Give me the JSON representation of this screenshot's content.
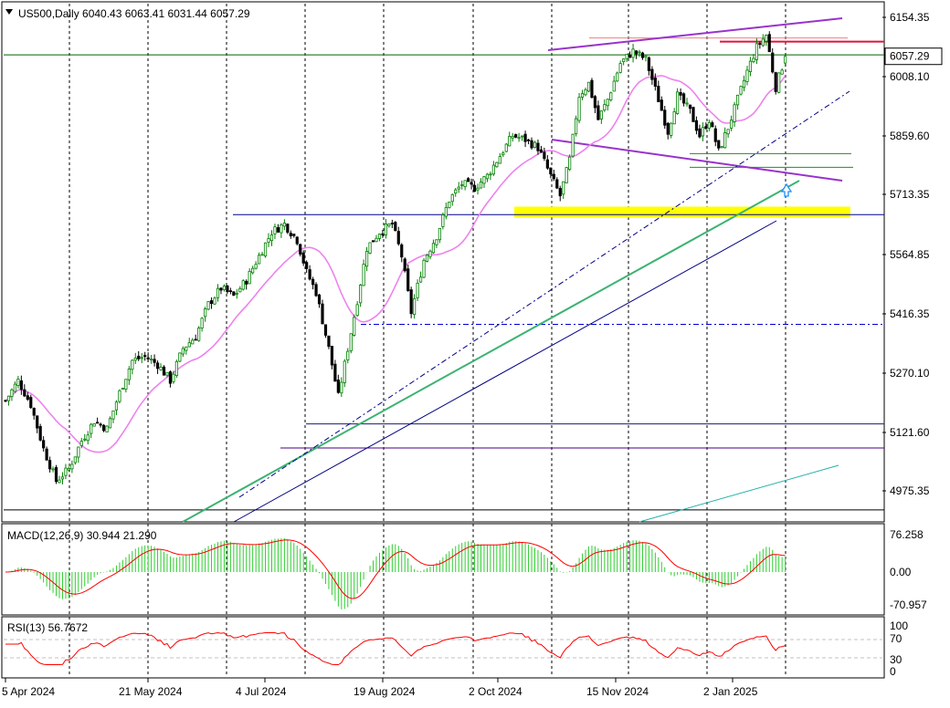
{
  "chart_data": {
    "type": "candlestick",
    "symbol": "US500",
    "timeframe": "Daily",
    "header": "US500,Daily  6040.43 6063.41 6031.44 6057.29",
    "ohlc_last": {
      "open": 6040.43,
      "high": 6063.41,
      "low": 6031.44,
      "close": 6057.29
    },
    "current_price_label": "6057.29",
    "y_ticks": [
      "6154.35",
      "6008.10",
      "5859.60",
      "5713.35",
      "5564.85",
      "5416.35",
      "5270.10",
      "5121.60",
      "4975.35"
    ],
    "y_range": [
      4900,
      6180
    ],
    "x_tick_labels": [
      "5 Apr 2024",
      "21 May 2024",
      "4 Jul 2024",
      "19 Aug 2024",
      "2 Oct 2024",
      "15 Nov 2024",
      "2 Jan 2025"
    ],
    "close_path": [
      [
        0,
        5200
      ],
      [
        4,
        5250
      ],
      [
        8,
        5190
      ],
      [
        12,
        5080
      ],
      [
        16,
        5000
      ],
      [
        20,
        5030
      ],
      [
        24,
        5100
      ],
      [
        28,
        5150
      ],
      [
        32,
        5130
      ],
      [
        36,
        5220
      ],
      [
        40,
        5300
      ],
      [
        44,
        5310
      ],
      [
        48,
        5290
      ],
      [
        52,
        5250
      ],
      [
        56,
        5330
      ],
      [
        60,
        5360
      ],
      [
        64,
        5440
      ],
      [
        68,
        5480
      ],
      [
        72,
        5460
      ],
      [
        76,
        5500
      ],
      [
        80,
        5560
      ],
      [
        84,
        5620
      ],
      [
        88,
        5640
      ],
      [
        92,
        5600
      ],
      [
        95,
        5520
      ],
      [
        98,
        5470
      ],
      [
        102,
        5330
      ],
      [
        105,
        5210
      ],
      [
        108,
        5330
      ],
      [
        111,
        5450
      ],
      [
        114,
        5580
      ],
      [
        118,
        5620
      ],
      [
        122,
        5640
      ],
      [
        125,
        5560
      ],
      [
        128,
        5420
      ],
      [
        132,
        5550
      ],
      [
        136,
        5610
      ],
      [
        140,
        5700
      ],
      [
        144,
        5740
      ],
      [
        148,
        5730
      ],
      [
        152,
        5760
      ],
      [
        156,
        5810
      ],
      [
        160,
        5860
      ],
      [
        164,
        5850
      ],
      [
        168,
        5830
      ],
      [
        172,
        5760
      ],
      [
        175,
        5710
      ],
      [
        178,
        5800
      ],
      [
        181,
        5960
      ],
      [
        184,
        5990
      ],
      [
        187,
        5900
      ],
      [
        190,
        5950
      ],
      [
        194,
        6040
      ],
      [
        198,
        6070
      ],
      [
        202,
        6050
      ],
      [
        206,
        5950
      ],
      [
        209,
        5870
      ],
      [
        212,
        5960
      ],
      [
        216,
        5920
      ],
      [
        219,
        5860
      ],
      [
        222,
        5900
      ],
      [
        225,
        5820
      ],
      [
        228,
        5880
      ],
      [
        231,
        5950
      ],
      [
        234,
        6020
      ],
      [
        237,
        6080
      ],
      [
        240,
        6110
      ],
      [
        243,
        5980
      ],
      [
        246,
        6057
      ]
    ],
    "horizontal_lines": [
      {
        "value": 6094,
        "color": "#dc143c"
      },
      {
        "value": 6061,
        "color": "#006400"
      },
      {
        "value": 5815,
        "color": "#228b22"
      },
      {
        "value": 5781,
        "color": "#228b22"
      },
      {
        "value": 5663,
        "color": "#00008b"
      },
      {
        "value": 5390,
        "color": "#0000cd"
      },
      {
        "value": 5142,
        "color": "#191970"
      },
      {
        "value": 5082,
        "color": "#4b0082"
      },
      {
        "value": 4928,
        "color": "#000000"
      }
    ],
    "support_zone": [
      5656,
      5683
    ],
    "macd": {
      "label": "MACD(12,26,9) 30.944 21.290",
      "y_ticks": [
        "76.258",
        "0.00",
        "-70.957"
      ],
      "histogram_last": 30.944,
      "signal_last": 21.29
    },
    "rsi": {
      "label": "RSI(13) 56.7672",
      "y_ticks": [
        "100",
        "70",
        "30",
        "0"
      ],
      "levels": [
        70,
        30
      ],
      "last": 56.7672
    },
    "colors": {
      "bull": "#008000",
      "bear": "#000000",
      "ma_fast": "#ee82ee",
      "ma_slow": "#000080",
      "trend": "#3cb371",
      "channel": "#9932cc",
      "macd_hist": "#32cd32",
      "macd_signal": "#ff0000",
      "rsi_line": "#ff0000",
      "price_line": "#8fbc8f",
      "support_zone": "#ffff00"
    }
  }
}
